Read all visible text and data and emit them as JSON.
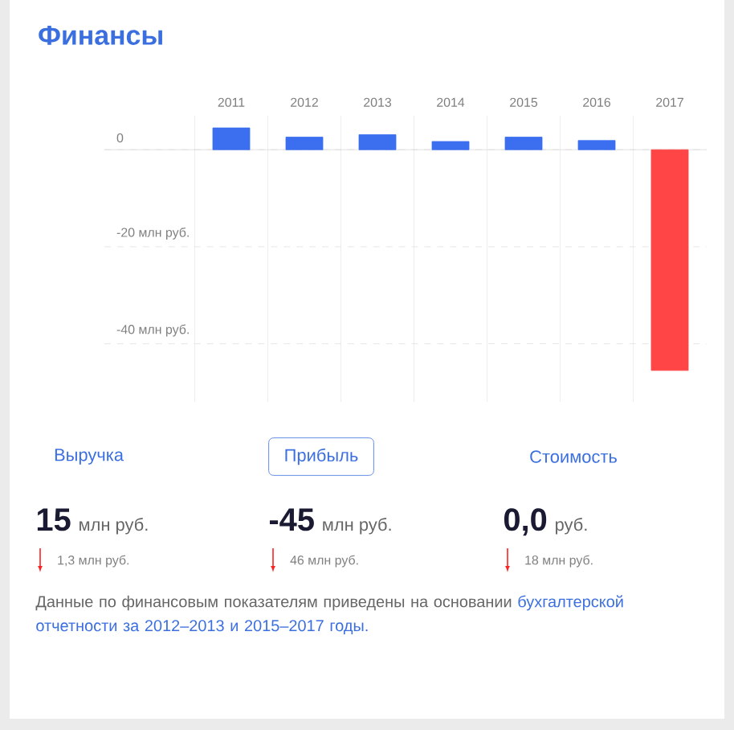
{
  "chart_data": {
    "type": "bar",
    "title": "Финансы",
    "categories": [
      "2011",
      "2012",
      "2013",
      "2014",
      "2015",
      "2016",
      "2017"
    ],
    "values": [
      4.5,
      2.6,
      3.1,
      1.7,
      2.6,
      1.9,
      -45.5
    ],
    "colors": [
      "#3b6ff0",
      "#3b6ff0",
      "#3b6ff0",
      "#3b6ff0",
      "#3b6ff0",
      "#3b6ff0",
      "#ff4545"
    ],
    "ylim": [
      -52,
      7
    ],
    "yticks": [
      {
        "value": -40,
        "label": "-40 млн руб."
      },
      {
        "value": -20,
        "label": "-20 млн руб."
      },
      0
    ],
    "grid": true,
    "annotations": [
      "Выручка",
      "Прибыль",
      "Стоимость",
      "15",
      "млн руб.",
      "-45",
      "млн руб.",
      "0,0",
      "руб.",
      "1,3 млн руб.",
      "46 млн руб.",
      "18 млн руб.",
      "Данные по финансовым показателям приведены на основании",
      "бухгалтерской отчетности за 2012–2013 и 2015–2017 годы."
    ]
  }
}
